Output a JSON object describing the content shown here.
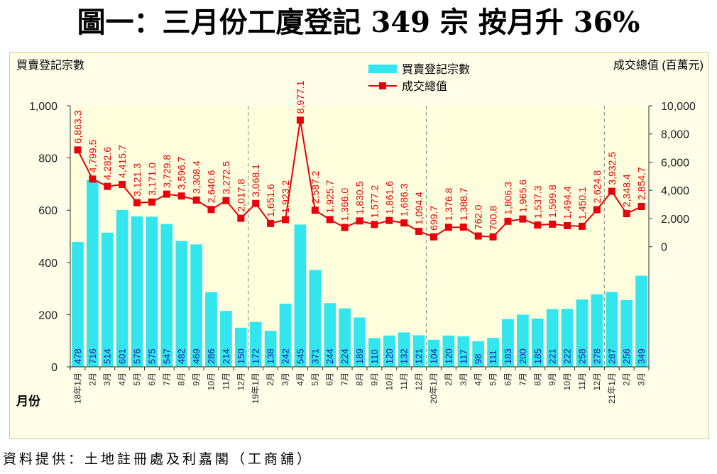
{
  "title": "圖一：三月份工廈登記 349 宗  按月升 36%",
  "source": "資料提供：土地註冊處及利嘉閣（工商舖）",
  "chart_data": {
    "type": "bar",
    "left_axis_title": "買賣登記宗數",
    "right_axis_title": "成交總值 (百萬元)",
    "x_axis_title": "月份",
    "categories": [
      "18年1月",
      "2月",
      "3月",
      "4月",
      "5月",
      "6月",
      "7月",
      "8月",
      "9月",
      "10月",
      "11月",
      "12月",
      "19年1月",
      "2月",
      "3月",
      "4月",
      "5月",
      "6月",
      "7月",
      "8月",
      "9月",
      "10月",
      "11月",
      "12月",
      "20年1月",
      "2月",
      "3月",
      "4月",
      "5月",
      "6月",
      "7月",
      "8月",
      "9月",
      "10月",
      "11月",
      "12月",
      "21年1月",
      "2月",
      "3月"
    ],
    "year_separators_after": [
      11,
      23,
      35
    ],
    "y_left": {
      "min": 0,
      "max": 1000,
      "ticks": [
        "0",
        "200",
        "400",
        "600",
        "800",
        "1,000"
      ]
    },
    "y_right": {
      "min": 0,
      "max": 10000,
      "ticks": [
        "0",
        "2,000",
        "4,000",
        "6,000",
        "8,000",
        "10,000"
      ]
    },
    "series": [
      {
        "name": "買賣登記宗數",
        "type": "bar",
        "axis": "left",
        "color": "#33e6ee",
        "values": [
          478,
          716,
          514,
          601,
          576,
          575,
          547,
          482,
          469,
          286,
          214,
          150,
          172,
          138,
          242,
          545,
          371,
          244,
          224,
          189,
          110,
          120,
          132,
          121,
          104,
          120,
          117,
          98,
          111,
          183,
          200,
          185,
          221,
          222,
          258,
          278,
          287,
          256,
          349
        ],
        "labels": [
          "478",
          "716",
          "514",
          "601",
          "576",
          "575",
          "547",
          "482",
          "469",
          "286",
          "214",
          "150",
          "172",
          "138",
          "242",
          "545",
          "371",
          "244",
          "224",
          "189",
          "110",
          "120",
          "132",
          "121",
          "104",
          "120",
          "117",
          "98",
          "111",
          "183",
          "200",
          "185",
          "221",
          "222",
          "258",
          "278",
          "287",
          "256",
          "349"
        ]
      },
      {
        "name": "成交總值",
        "type": "line",
        "axis": "right",
        "color": "#e8000c",
        "values": [
          6863.3,
          4799.5,
          4282.6,
          4415.7,
          3121.3,
          3171.0,
          3729.8,
          3596.7,
          3308.4,
          2640.6,
          3272.5,
          2017.8,
          3068.1,
          1651.6,
          1923.2,
          8977.1,
          2587.2,
          1925.7,
          1366.0,
          1830.5,
          1577.2,
          1861.6,
          1686.3,
          1094.4,
          699.7,
          1376.8,
          1388.7,
          762.0,
          700.8,
          1806.3,
          1965.6,
          1537.3,
          1599.8,
          1494.4,
          1450.1,
          2624.8,
          3932.5,
          2348.4,
          2854.7
        ],
        "labels": [
          "6,863.3",
          "4,799.5",
          "4,282.6",
          "4,415.7",
          "3,121.3",
          "3,171.0",
          "3,729.8",
          "3,596.7",
          "3,308.4",
          "2,640.6",
          "3,272.5",
          "2,017.8",
          "3,068.1",
          "1,651.6",
          "1,923.2",
          "8,977.1",
          "2,587.2",
          "1,925.7",
          "1,366.0",
          "1,830.5",
          "1,577.2",
          "1,861.6",
          "1,686.3",
          "1,094.4",
          "699.7",
          "1,376.8",
          "1,388.7",
          "762.0",
          "700.8",
          "1,806.3",
          "1,965.6",
          "1,537.3",
          "1,599.8",
          "1,494.4",
          "1,450.1",
          "2,624.8",
          "3,932.5",
          "2,348.4",
          "2,854.7"
        ]
      }
    ],
    "legend_position": "top-center",
    "colors": {
      "plot_background": "#ffffdd",
      "panel_background": "#fffde8",
      "panel_border": "#d4c98a"
    }
  }
}
